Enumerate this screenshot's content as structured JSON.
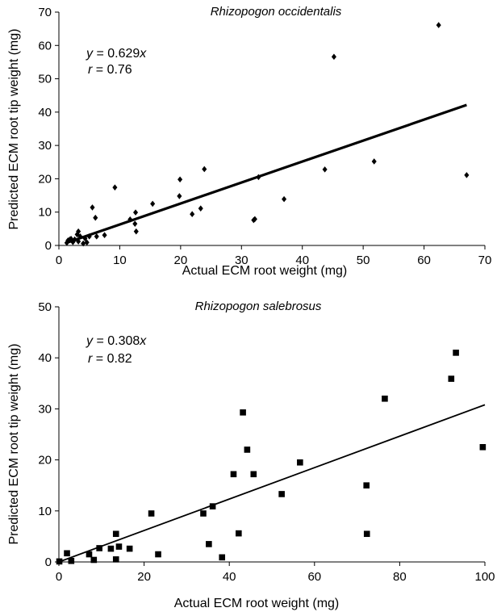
{
  "chart_data": [
    {
      "type": "scatter",
      "title": "Rhizopogon occidentalis",
      "xlabel": "Actual ECM root weight (mg)",
      "ylabel": "Predicted ECM root tip weight (mg)",
      "xlim": [
        0,
        70
      ],
      "ylim": [
        0,
        70
      ],
      "xticks": [
        "0",
        "10",
        "20",
        "30",
        "40",
        "50",
        "60",
        "70"
      ],
      "yticks": [
        "0",
        "10",
        "20",
        "30",
        "40",
        "50",
        "60",
        "70"
      ],
      "marker": "diamond",
      "fit": {
        "slope": 0.629,
        "x_range": [
          1.3,
          67
        ]
      },
      "annotation": {
        "equation_var": "y",
        "equation_rest": " = 0.629",
        "equation_x": "x",
        "r_var": "r",
        "r_rest": " = 0.76"
      },
      "points": [
        [
          1.3,
          0.8
        ],
        [
          1.5,
          1.5
        ],
        [
          1.8,
          1.8
        ],
        [
          2.0,
          2.0
        ],
        [
          2.3,
          1.0
        ],
        [
          2.6,
          1.8
        ],
        [
          3.0,
          3.3
        ],
        [
          3.2,
          4.2
        ],
        [
          3.2,
          1.2
        ],
        [
          3.5,
          2.7
        ],
        [
          4.0,
          0.6
        ],
        [
          4.3,
          2.1
        ],
        [
          4.6,
          0.9
        ],
        [
          5.0,
          2.7
        ],
        [
          5.5,
          11.4
        ],
        [
          6.0,
          8.3
        ],
        [
          6.2,
          2.7
        ],
        [
          7.5,
          3.1
        ],
        [
          9.2,
          17.4
        ],
        [
          11.7,
          7.8
        ],
        [
          12.5,
          6.5
        ],
        [
          12.6,
          9.9
        ],
        [
          12.7,
          4.2
        ],
        [
          15.4,
          12.5
        ],
        [
          19.8,
          14.8
        ],
        [
          19.9,
          19.8
        ],
        [
          21.9,
          9.4
        ],
        [
          23.3,
          11.1
        ],
        [
          23.9,
          22.9
        ],
        [
          32.0,
          7.6
        ],
        [
          32.2,
          7.9
        ],
        [
          32.8,
          20.5
        ],
        [
          37.0,
          13.9
        ],
        [
          43.7,
          22.8
        ],
        [
          45.2,
          56.6
        ],
        [
          51.8,
          25.2
        ],
        [
          62.4,
          66.1
        ],
        [
          67.0,
          21.1
        ]
      ]
    },
    {
      "type": "scatter",
      "title": "Rhizopogon salebrosus",
      "xlabel": "Actual ECM root weight (mg)",
      "ylabel": "Predicted ECM root tip weight (mg)",
      "xlim": [
        0,
        100
      ],
      "ylim": [
        0,
        50
      ],
      "xticks": [
        "0",
        "20",
        "40",
        "60",
        "80",
        "100"
      ],
      "yticks": [
        "0",
        "10",
        "20",
        "30",
        "40",
        "50"
      ],
      "marker": "square",
      "fit": {
        "slope": 0.308,
        "x_range": [
          0,
          100
        ]
      },
      "annotation": {
        "equation_var": "y",
        "equation_rest": " = 0.308",
        "equation_x": "x",
        "r_var": "r",
        "r_rest": " = 0.82"
      },
      "points": [
        [
          0.1,
          0.1
        ],
        [
          1.9,
          1.7
        ],
        [
          2.9,
          0.2
        ],
        [
          7.1,
          1.5
        ],
        [
          8.2,
          0.4
        ],
        [
          9.5,
          2.7
        ],
        [
          12.2,
          2.6
        ],
        [
          13.4,
          5.5
        ],
        [
          13.4,
          0.5
        ],
        [
          14.1,
          3.0
        ],
        [
          16.6,
          2.6
        ],
        [
          21.7,
          9.5
        ],
        [
          23.3,
          1.5
        ],
        [
          33.9,
          9.5
        ],
        [
          35.2,
          3.5
        ],
        [
          36.1,
          10.9
        ],
        [
          38.3,
          0.9
        ],
        [
          41.0,
          17.2
        ],
        [
          42.2,
          5.6
        ],
        [
          43.2,
          29.3
        ],
        [
          44.2,
          22.0
        ],
        [
          45.7,
          17.2
        ],
        [
          52.3,
          13.3
        ],
        [
          56.6,
          19.5
        ],
        [
          72.2,
          15.0
        ],
        [
          72.3,
          5.5
        ],
        [
          76.5,
          32.0
        ],
        [
          92.1,
          35.9
        ],
        [
          93.2,
          41.0
        ],
        [
          99.5,
          22.5
        ]
      ]
    }
  ]
}
